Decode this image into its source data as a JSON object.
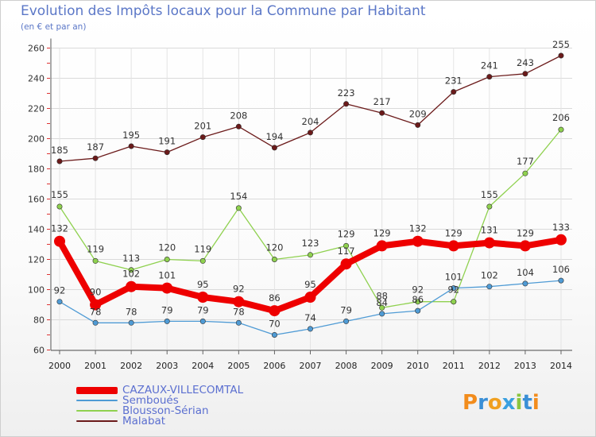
{
  "title": "Evolution des Impôts locaux pour la Commune par Habitant",
  "subtitle": "(en € et par an)",
  "logo_text": "Proxiti",
  "chart_data": {
    "type": "line",
    "x": [
      "2000",
      "2001",
      "2002",
      "2003",
      "2004",
      "2005",
      "2006",
      "2007",
      "2008",
      "2009",
      "2010",
      "2011",
      "2012",
      "2013",
      "2014"
    ],
    "ylim": [
      60,
      260
    ],
    "yticks": [
      60,
      80,
      100,
      120,
      140,
      160,
      180,
      200,
      220,
      240,
      260
    ],
    "grid": true,
    "legend_position": "bottom-left",
    "series": [
      {
        "name": "Malabat",
        "color": "#6b1a1a",
        "values": [
          185,
          187,
          195,
          191,
          201,
          208,
          194,
          204,
          223,
          217,
          209,
          231,
          241,
          243,
          255
        ]
      },
      {
        "name": "Blousson-Sérian",
        "color": "#8fd14f",
        "values": [
          155,
          119,
          113,
          120,
          119,
          154,
          120,
          123,
          129,
          88,
          92,
          92,
          null,
          null,
          null
        ]
      },
      {
        "name": "Blousson-Sérian",
        "color": "#8fd14f",
        "values": [
          null,
          null,
          null,
          null,
          null,
          null,
          null,
          null,
          null,
          null,
          null,
          92,
          155,
          177,
          206
        ]
      },
      {
        "name": "Semboués",
        "color": "#4f9bd5",
        "values": [
          92,
          78,
          78,
          79,
          79,
          78,
          70,
          74,
          79,
          84,
          86,
          101,
          102,
          104,
          106
        ]
      },
      {
        "name": "CAZAUX-VILLECOMTAL",
        "color": "#ee0000",
        "values": [
          132,
          90,
          102,
          101,
          95,
          92,
          86,
          95,
          117,
          129,
          132,
          129,
          131,
          129,
          133
        ]
      }
    ],
    "point_labels": {
      "Malabat": [
        "185",
        "187",
        "195",
        "191",
        "201",
        "208",
        "194",
        "204",
        "223",
        "217",
        "209",
        "231",
        "241",
        "243",
        "255"
      ],
      "Blousson-Sérian": [
        "155",
        "119",
        "113",
        "120",
        "119",
        "154",
        "120",
        "123",
        "129",
        "88",
        "92",
        "92",
        "155",
        "177",
        "206"
      ],
      "Semboués": [
        "92",
        "78",
        "78",
        "79",
        "79",
        "78",
        "70",
        "74",
        "79",
        "84",
        "86",
        "101",
        "102",
        "104",
        "106"
      ],
      "CAZAUX-VILLECOMTAL": [
        "132",
        "90",
        "102",
        "101",
        "95",
        "92",
        "86",
        "95",
        "117",
        "129",
        "132",
        "129",
        "131",
        "129",
        "133"
      ]
    }
  },
  "legend": [
    {
      "name": "CAZAUX-VILLECOMTAL",
      "color": "#ee0000"
    },
    {
      "name": "Semboués",
      "color": "#4f9bd5"
    },
    {
      "name": "Blousson-Sérian",
      "color": "#8fd14f"
    },
    {
      "name": "Malabat",
      "color": "#6b1a1a"
    }
  ]
}
